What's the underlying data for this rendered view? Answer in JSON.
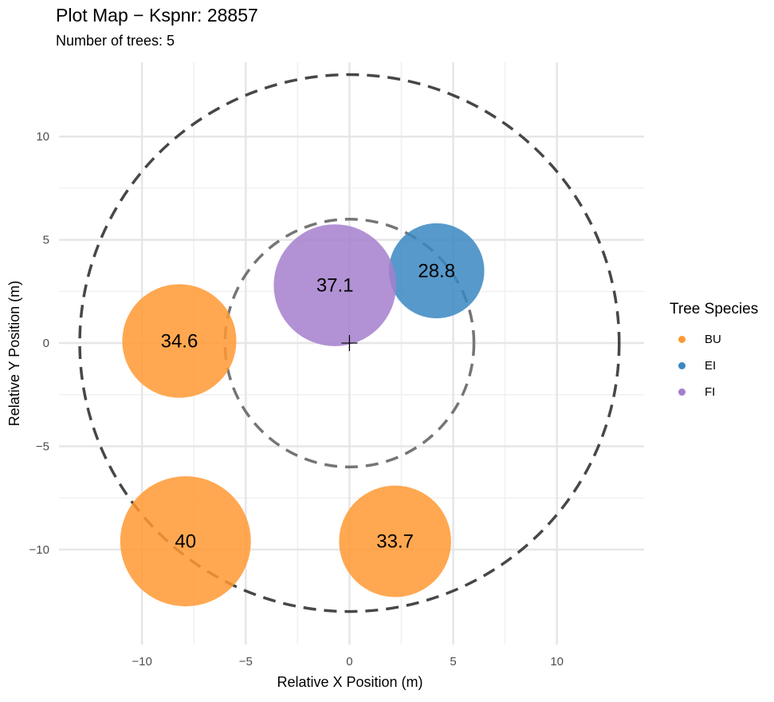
{
  "title": "Plot Map − Kspnr: 28857",
  "subtitle": "Number of trees: 5",
  "chart_data": {
    "type": "scatter",
    "xlabel": "Relative X Position (m)",
    "ylabel": "Relative Y Position (m)",
    "xlim": [
      -14,
      14.2
    ],
    "ylim": [
      -14.6,
      13.6
    ],
    "x_ticks": [
      -10,
      -5,
      0,
      5,
      10
    ],
    "y_ticks": [
      -10,
      -5,
      0,
      5,
      10
    ],
    "x_tick_labels": [
      "−10",
      "−5",
      "0",
      "5",
      "10"
    ],
    "y_tick_labels": [
      "−10",
      "−5",
      "0",
      "5",
      "10"
    ],
    "grid": true,
    "plot_circles": [
      {
        "radius": 13,
        "color": "#333333"
      },
      {
        "radius": 6,
        "color": "#666666"
      }
    ],
    "center_marker": {
      "x": 0,
      "y": 0,
      "symbol": "+"
    },
    "trees": [
      {
        "x": -8.2,
        "y": 0.1,
        "diameter": 34.6,
        "radius": 2.75,
        "label": "34.6",
        "species": "BU"
      },
      {
        "x": -7.9,
        "y": -9.6,
        "diameter": 40,
        "radius": 3.15,
        "label": "40",
        "species": "BU"
      },
      {
        "x": 2.2,
        "y": -9.6,
        "diameter": 33.7,
        "radius": 2.7,
        "label": "33.7",
        "species": "BU"
      },
      {
        "x": 4.2,
        "y": 3.5,
        "diameter": 28.8,
        "radius": 2.3,
        "label": "28.8",
        "species": "EI"
      },
      {
        "x": -0.7,
        "y": 2.8,
        "diameter": 37.1,
        "radius": 2.95,
        "label": "37.1",
        "species": "FI"
      }
    ],
    "legend": {
      "title": "Tree Species",
      "placement": "right",
      "items": [
        {
          "label": "BU",
          "color": "#FF9933"
        },
        {
          "label": "EI",
          "color": "#3A87C2"
        },
        {
          "label": "FI",
          "color": "#A47FCC"
        }
      ]
    }
  }
}
